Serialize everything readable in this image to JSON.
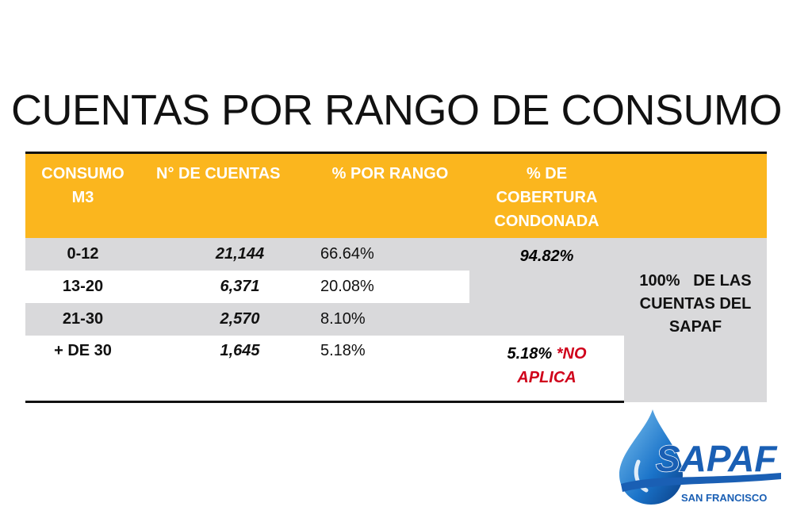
{
  "title": "CUENTAS POR RANGO DE CONSUMO",
  "table": {
    "headers": {
      "consumo_line1": "CONSUMO",
      "consumo_line2": "M3",
      "cuentas": "N° DE CUENTAS",
      "por_rango": "% POR RANGO",
      "cobertura_line1": "% DE",
      "cobertura_line2": "COBERTURA",
      "cobertura_line3": "CONDONADA"
    },
    "rows": [
      {
        "consumo": "0-12",
        "cuentas": "21,144",
        "porcentaje": "66.64%"
      },
      {
        "consumo": "13-20",
        "cuentas": "6,371",
        "porcentaje": "20.08%"
      },
      {
        "consumo": "21-30",
        "cuentas": "2,570",
        "porcentaje": "8.10%"
      },
      {
        "consumo": "+ DE 30",
        "cuentas": "1,645",
        "porcentaje": "5.18%"
      }
    ],
    "cobertura_condonada": "94.82%",
    "cobertura_no_aplica_pct": "5.18%",
    "cobertura_no_aplica_note_1": "*NO",
    "cobertura_no_aplica_note_2": "APLICA",
    "total_note_line1": "100%   DE LAS",
    "total_note_line2": "CUENTAS DEL",
    "total_note_line3": "SAPAF"
  },
  "logo": {
    "name": "SAPAF",
    "subtitle": "SAN FRANCISCO"
  },
  "colors": {
    "header_bg": "#fbb61e",
    "row_gray": "#d9d9db",
    "accent_red": "#d0021b",
    "logo_blue": "#1a5fb4"
  }
}
